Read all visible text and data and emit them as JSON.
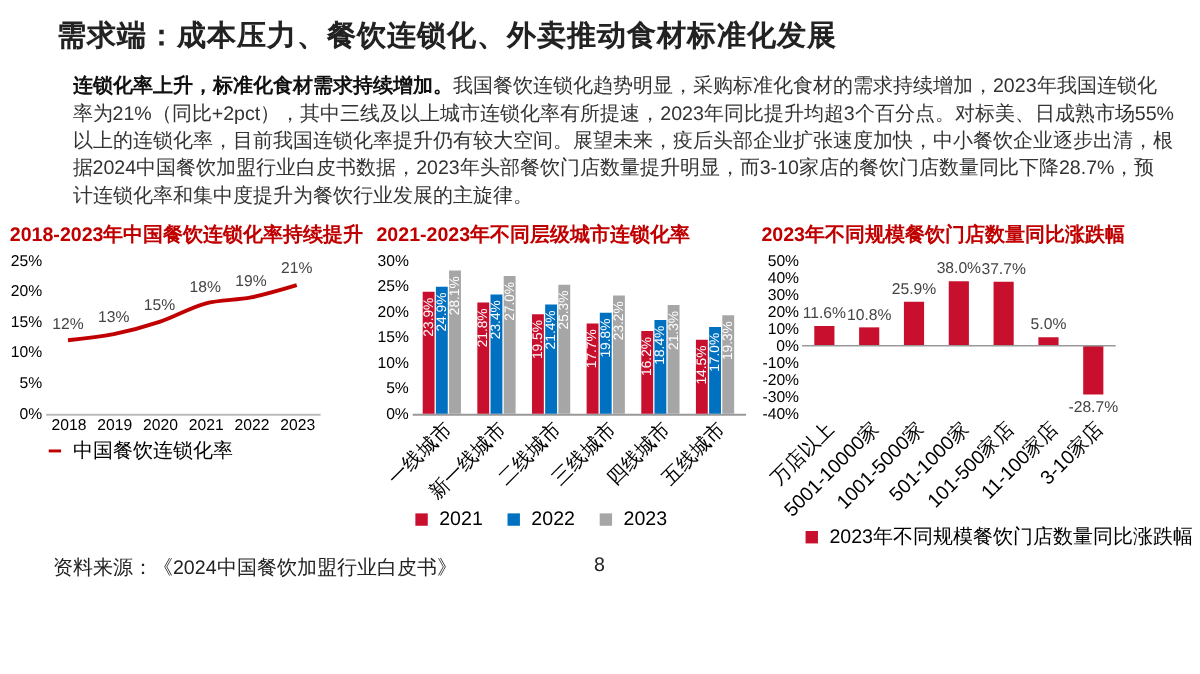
{
  "chart_data": [
    {
      "type": "other",
      "title": "需求端：成本压力、餐饮连锁化、外卖推动食材标准化发展",
      "annotations": [
        "连锁化率上升，标准化食材需求持续增加。",
        "我国餐饮连锁化趋势明显，采购标准化食材的需求持续增加，2023年我国连锁化率为21%（同比+2pct），其中三线及以上城市连锁化率有所提速，2023年同比提升均超3个百分点。对标美、日成熟市场55%以上的连锁化率，目前我国连锁化率提升仍有较大空间。展望未来，疫后头部企业扩张速度加快，中小餐饮企业逐步出清，根据2024中国餐饮加盟行业白皮书数据，2023年头部餐饮门店数量提升明显，而3-10家店的餐饮门店数量同比下降28.7%，预计连锁化率和集中度提升为餐饮行业发展的主旋律。",
        "资料来源：《2024中国餐饮加盟行业白皮书》",
        "8"
      ]
    },
    {
      "type": "line",
      "title": "2018-2023年中国餐饮连锁化率持续提升",
      "categories": [
        "2018",
        "2019",
        "2020",
        "2021",
        "2022",
        "2023"
      ],
      "series": [
        {
          "name": "中国餐饮连锁化率",
          "color": "#c00000",
          "values": [
            12,
            13,
            15,
            18,
            19,
            21
          ],
          "value_labels": [
            "12%",
            "13%",
            "15%",
            "18%",
            "19%",
            "21%"
          ]
        }
      ],
      "ylim": [
        0,
        25
      ],
      "yticks": [
        {
          "value": 0,
          "label": "0%"
        },
        {
          "value": 5,
          "label": "5%"
        },
        {
          "value": 10,
          "label": "10%"
        },
        {
          "value": 15,
          "label": "15%"
        },
        {
          "value": 20,
          "label": "20%"
        },
        {
          "value": 25,
          "label": "25%"
        }
      ],
      "legend": "bottom",
      "marker": "none",
      "line_style": "solid",
      "grid": false
    },
    {
      "type": "bar",
      "title": "2021-2023年不同层级城市连锁化率",
      "categories": [
        "一线城市",
        "新一线城市",
        "二线城市",
        "三线城市",
        "四线城市",
        "五线城市"
      ],
      "series": [
        {
          "name": "2021",
          "color": "#c8102e",
          "values": [
            23.9,
            21.8,
            19.5,
            17.7,
            16.2,
            14.5
          ],
          "value_labels": [
            "23.9%",
            "21.8%",
            "19.5%",
            "17.7%",
            "16.2%",
            "14.5%"
          ]
        },
        {
          "name": "2022",
          "color": "#0070c0",
          "values": [
            24.9,
            23.4,
            21.4,
            19.8,
            18.4,
            17.0
          ],
          "value_labels": [
            "24.9%",
            "23.4%",
            "21.4%",
            "19.8%",
            "18.4%",
            "17.0%"
          ]
        },
        {
          "name": "2023",
          "color": "#a6a6a6",
          "values": [
            28.1,
            27.0,
            25.3,
            23.2,
            21.3,
            19.3
          ],
          "value_labels": [
            "28.1%",
            "27.0%",
            "25.3%",
            "23.2%",
            "21.3%",
            "19.3%"
          ]
        }
      ],
      "ylim": [
        0,
        30
      ],
      "yticks": [
        {
          "value": 0,
          "label": "0%"
        },
        {
          "value": 5,
          "label": "5%"
        },
        {
          "value": 10,
          "label": "10%"
        },
        {
          "value": 15,
          "label": "15%"
        },
        {
          "value": 20,
          "label": "20%"
        },
        {
          "value": 25,
          "label": "25%"
        },
        {
          "value": 30,
          "label": "30%"
        }
      ],
      "legend": "bottom",
      "grid": false
    },
    {
      "type": "bar",
      "title": "2023年不同规模餐饮门店数量同比涨跌幅",
      "categories": [
        "万店以上",
        "5001-10000家",
        "1001-5000家",
        "501-1000家",
        "101-500家店",
        "11-100家店",
        "3-10家店"
      ],
      "series": [
        {
          "name": "2023年不同规模餐饮门店数量同比涨跌幅",
          "color": "#c8102e",
          "values": [
            11.6,
            10.8,
            25.9,
            38.0,
            37.7,
            5.0,
            -28.7
          ],
          "value_labels": [
            "11.6%",
            "10.8%",
            "25.9%",
            "38.0%",
            "37.7%",
            "5.0%",
            "-28.7%"
          ]
        }
      ],
      "ylim": [
        -40,
        50
      ],
      "yticks": [
        {
          "value": -40,
          "label": "-40%"
        },
        {
          "value": -30,
          "label": "-30%"
        },
        {
          "value": -20,
          "label": "-20%"
        },
        {
          "value": -10,
          "label": "-10%"
        },
        {
          "value": 0,
          "label": "0%"
        },
        {
          "value": 10,
          "label": "10%"
        },
        {
          "value": 20,
          "label": "20%"
        },
        {
          "value": 30,
          "label": "30%"
        },
        {
          "value": 40,
          "label": "40%"
        },
        {
          "value": 50,
          "label": "50%"
        }
      ],
      "ref_lines": [
        {
          "axis": "y",
          "value": 0,
          "color": "#999999"
        }
      ],
      "legend": "bottom",
      "grid": false
    }
  ]
}
